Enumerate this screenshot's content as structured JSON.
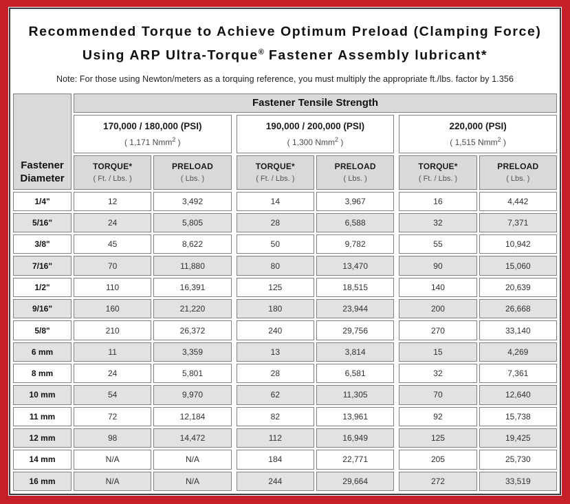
{
  "header": {
    "title_line1": "Recommended Torque to Achieve Optimum Preload (Clamping Force)",
    "title_line2_before": "Using ARP Ultra-Torque",
    "title_line2_sup": "®",
    "title_line2_after": " Fastener Assembly lubricant*",
    "note": "Note: For those using Newton/meters as a torquing reference, you must multiply the appropriate ft./lbs. factor by 1.356"
  },
  "colors": {
    "frame_red": "#c5202a",
    "inner_border": "#3a3a3a",
    "header_gray": "#d9d9d9",
    "row_gray": "#e2e2e2",
    "cell_border": "#7f7f7f"
  },
  "chart_data": {
    "type": "table",
    "title": "Fastener Tensile Strength",
    "corner_line1": "Fastener",
    "corner_line2": "Diameter",
    "groups": [
      {
        "psi": "170,000 / 180,000 (PSI)",
        "nmm_before": "( 1,171 Nmm",
        "nmm_sup": "2",
        "nmm_after": " )"
      },
      {
        "psi": "190,000 / 200,000 (PSI)",
        "nmm_before": "( 1,300 Nmm",
        "nmm_sup": "2",
        "nmm_after": " )"
      },
      {
        "psi": "220,000 (PSI)",
        "nmm_before": "( 1,515 Nmm",
        "nmm_sup": "2",
        "nmm_after": " )"
      }
    ],
    "sub_headers": {
      "torque": "TORQUE*",
      "torque_sub": "( Ft. / Lbs. )",
      "preload": "PRELOAD",
      "preload_sub": "( Lbs. )"
    },
    "rows": [
      {
        "diameter": "1/4\"",
        "values": [
          "12",
          "3,492",
          "14",
          "3,967",
          "16",
          "4,442"
        ]
      },
      {
        "diameter": "5/16\"",
        "values": [
          "24",
          "5,805",
          "28",
          "6,588",
          "32",
          "7,371"
        ]
      },
      {
        "diameter": "3/8\"",
        "values": [
          "45",
          "8,622",
          "50",
          "9,782",
          "55",
          "10,942"
        ]
      },
      {
        "diameter": "7/16\"",
        "values": [
          "70",
          "11,880",
          "80",
          "13,470",
          "90",
          "15,060"
        ]
      },
      {
        "diameter": "1/2\"",
        "values": [
          "110",
          "16,391",
          "125",
          "18,515",
          "140",
          "20,639"
        ]
      },
      {
        "diameter": "9/16\"",
        "values": [
          "160",
          "21,220",
          "180",
          "23,944",
          "200",
          "26,668"
        ]
      },
      {
        "diameter": "5/8\"",
        "values": [
          "210",
          "26,372",
          "240",
          "29,756",
          "270",
          "33,140"
        ]
      },
      {
        "diameter": "6 mm",
        "values": [
          "11",
          "3,359",
          "13",
          "3,814",
          "15",
          "4,269"
        ]
      },
      {
        "diameter": "8 mm",
        "values": [
          "24",
          "5,801",
          "28",
          "6,581",
          "32",
          "7,361"
        ]
      },
      {
        "diameter": "10 mm",
        "values": [
          "54",
          "9,970",
          "62",
          "11,305",
          "70",
          "12,640"
        ]
      },
      {
        "diameter": "11 mm",
        "values": [
          "72",
          "12,184",
          "82",
          "13,961",
          "92",
          "15,738"
        ]
      },
      {
        "diameter": "12 mm",
        "values": [
          "98",
          "14,472",
          "112",
          "16,949",
          "125",
          "19,425"
        ]
      },
      {
        "diameter": "14 mm",
        "values": [
          "N/A",
          "N/A",
          "184",
          "22,771",
          "205",
          "25,730"
        ]
      },
      {
        "diameter": "16 mm",
        "values": [
          "N/A",
          "N/A",
          "244",
          "29,664",
          "272",
          "33,519"
        ]
      }
    ]
  }
}
